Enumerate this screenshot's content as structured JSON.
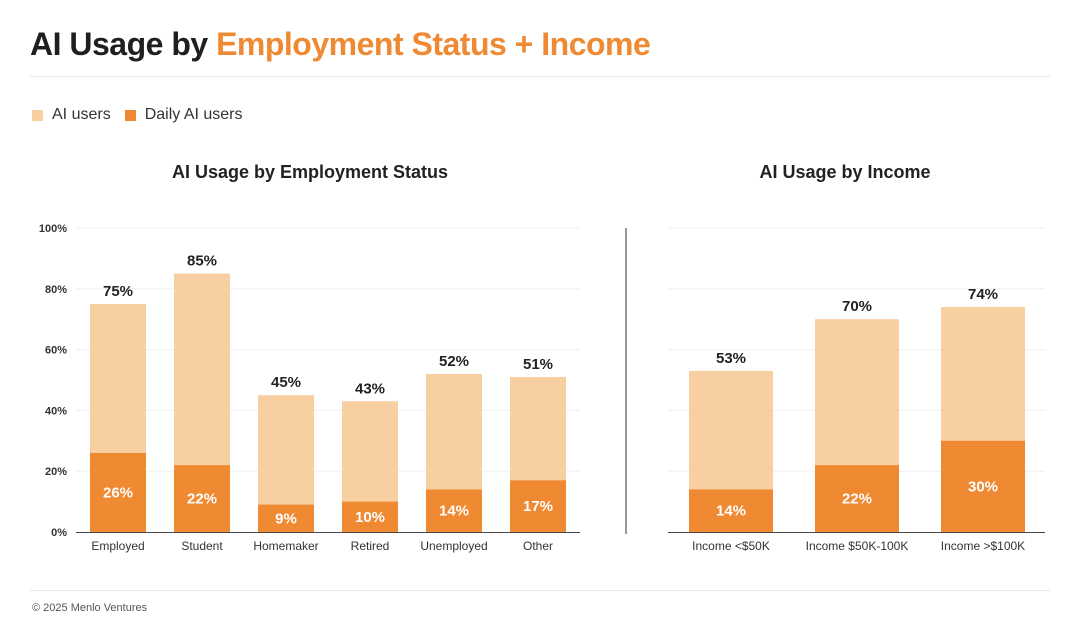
{
  "title": {
    "prefix": "AI Usage by",
    "highlight": "Employment Status + Income"
  },
  "legend": [
    {
      "label": "AI users",
      "color": "#f8cfa0"
    },
    {
      "label": "Daily AI users",
      "color": "#ef8a33"
    }
  ],
  "footer": "© 2025 Menlo Ventures",
  "chart_data": [
    {
      "type": "bar",
      "title": "AI Usage by Employment Status",
      "categories": [
        "Employed",
        "Student",
        "Homemaker",
        "Retired",
        "Unemployed",
        "Other"
      ],
      "series": [
        {
          "name": "AI users",
          "values": [
            75,
            85,
            45,
            43,
            52,
            51
          ],
          "color": "#f8cfa0"
        },
        {
          "name": "Daily AI users",
          "values": [
            26,
            22,
            9,
            10,
            14,
            17
          ],
          "color": "#ef8a33"
        }
      ],
      "ylim": [
        0,
        100
      ],
      "yticks": [
        "0%",
        "20%",
        "40%",
        "60%",
        "80%",
        "100%"
      ],
      "value_suffix": "%",
      "grid": true
    },
    {
      "type": "bar",
      "title": "AI Usage by Income",
      "categories": [
        "Income <$50K",
        "Income $50K-100K",
        "Income >$100K"
      ],
      "series": [
        {
          "name": "AI users",
          "values": [
            53,
            70,
            74
          ],
          "color": "#f8cfa0"
        },
        {
          "name": "Daily AI users",
          "values": [
            14,
            22,
            30
          ],
          "color": "#ef8a33"
        }
      ],
      "ylim": [
        0,
        100
      ],
      "value_suffix": "%",
      "grid": true
    }
  ]
}
